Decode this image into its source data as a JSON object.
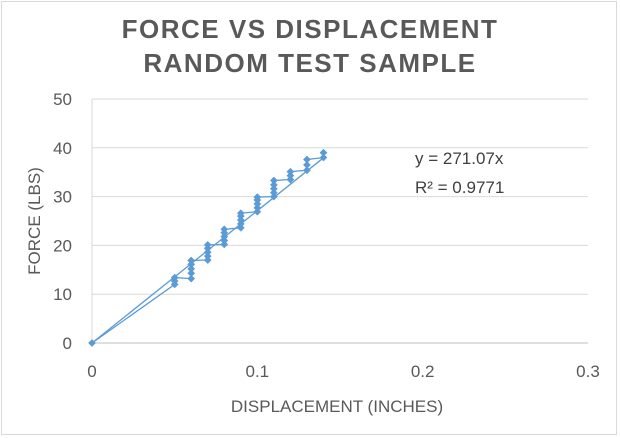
{
  "chart_data": {
    "type": "scatter",
    "title_lines": [
      "FORCE VS DISPLACEMENT",
      "RANDOM TEST SAMPLE"
    ],
    "xlabel": "DISPLACEMENT (INCHES)",
    "ylabel": "FORCE (LBS)",
    "xlim": [
      0,
      0.3
    ],
    "ylim": [
      0,
      50
    ],
    "x_ticks": [
      0,
      0.1,
      0.2,
      0.3
    ],
    "x_tick_labels": [
      "0",
      "0.1",
      "0.2",
      "0.3"
    ],
    "y_ticks": [
      0,
      10,
      20,
      30,
      40,
      50
    ],
    "y_tick_labels": [
      "0",
      "10",
      "20",
      "30",
      "40",
      "50"
    ],
    "grid": "horizontal",
    "legend": "none",
    "series": [
      {
        "color": "#5b9bd5",
        "marker": "diamond",
        "x": [
          0,
          0.05,
          0.05,
          0.05,
          0.06,
          0.06,
          0.06,
          0.06,
          0.06,
          0.07,
          0.07,
          0.07,
          0.07,
          0.07,
          0.08,
          0.08,
          0.08,
          0.08,
          0.08,
          0.09,
          0.09,
          0.09,
          0.09,
          0.09,
          0.1,
          0.1,
          0.1,
          0.1,
          0.1,
          0.11,
          0.11,
          0.11,
          0.11,
          0.11,
          0.12,
          0.12,
          0.12,
          0.13,
          0.13,
          0.13,
          0.14,
          0.14
        ],
        "y": [
          0,
          12,
          12.7,
          13.4,
          13.2,
          14.3,
          15.2,
          16.1,
          16.9,
          17,
          17.8,
          18.6,
          19.4,
          20.1,
          20.2,
          21,
          21.8,
          22.6,
          23.3,
          23.6,
          24.4,
          25.2,
          26,
          26.6,
          26.9,
          27.7,
          28.5,
          29.3,
          29.9,
          30,
          30.8,
          31.6,
          32.4,
          33.3,
          33.5,
          34.3,
          35.1,
          35.4,
          36.5,
          37.6,
          38,
          39
        ]
      }
    ],
    "trendline": {
      "type": "linear-through-origin",
      "slope": 271.07,
      "color": "#5b9bd5",
      "equation_label": "y = 271.07x",
      "r2_label": "R² = 0.9771"
    }
  }
}
